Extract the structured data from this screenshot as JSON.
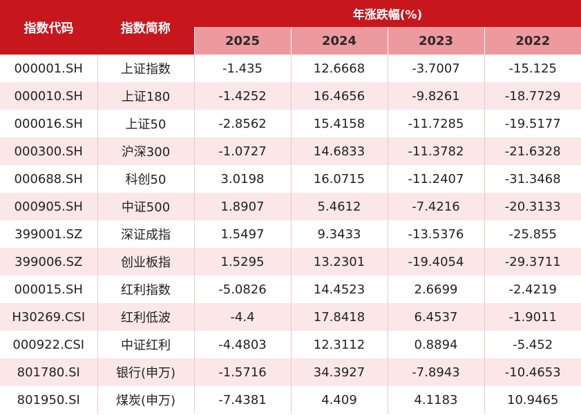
{
  "header": {
    "code_label": "指数代码",
    "name_label": "指数简称",
    "group_label": "年涨跌幅(%)",
    "years": [
      "2025",
      "2024",
      "2023",
      "2022"
    ]
  },
  "rows": [
    {
      "code": "000001.SH",
      "name": "上证指数",
      "v2025": "-1.435",
      "v2024": "12.6668",
      "v2023": "-3.7007",
      "v2022": "-15.125"
    },
    {
      "code": "000010.SH",
      "name": "上证180",
      "v2025": "-1.4252",
      "v2024": "16.4656",
      "v2023": "-9.8261",
      "v2022": "-18.7729"
    },
    {
      "code": "000016.SH",
      "name": "上证50",
      "v2025": "-2.8562",
      "v2024": "15.4158",
      "v2023": "-11.7285",
      "v2022": "-19.5177"
    },
    {
      "code": "000300.SH",
      "name": "沪深300",
      "v2025": "-1.0727",
      "v2024": "14.6833",
      "v2023": "-11.3782",
      "v2022": "-21.6328"
    },
    {
      "code": "000688.SH",
      "name": "科创50",
      "v2025": "3.0198",
      "v2024": "16.0715",
      "v2023": "-11.2407",
      "v2022": "-31.3468"
    },
    {
      "code": "000905.SH",
      "name": "中证500",
      "v2025": "1.8907",
      "v2024": "5.4612",
      "v2023": "-7.4216",
      "v2022": "-20.3133"
    },
    {
      "code": "399001.SZ",
      "name": "深证成指",
      "v2025": "1.5497",
      "v2024": "9.3433",
      "v2023": "-13.5376",
      "v2022": "-25.855"
    },
    {
      "code": "399006.SZ",
      "name": "创业板指",
      "v2025": "1.5295",
      "v2024": "13.2301",
      "v2023": "-19.4054",
      "v2022": "-29.3711"
    },
    {
      "code": "000015.SH",
      "name": "红利指数",
      "v2025": "-5.0826",
      "v2024": "14.4523",
      "v2023": "2.6699",
      "v2022": "-2.4219"
    },
    {
      "code": "H30269.CSI",
      "name": "红利低波",
      "v2025": "-4.4",
      "v2024": "17.8418",
      "v2023": "6.4537",
      "v2022": "-1.9011"
    },
    {
      "code": "000922.CSI",
      "name": "中证红利",
      "v2025": "-4.4803",
      "v2024": "12.3112",
      "v2023": "0.8894",
      "v2022": "-5.452"
    },
    {
      "code": "801780.SI",
      "name": "银行(申万)",
      "v2025": "-1.5716",
      "v2024": "34.3927",
      "v2023": "-7.8943",
      "v2022": "-10.4653"
    },
    {
      "code": "801950.SI",
      "name": "煤炭(申万)",
      "v2025": "-7.4381",
      "v2024": "4.409",
      "v2023": "4.1183",
      "v2022": "10.9465"
    }
  ],
  "colors": {
    "header_red": "#c8161d",
    "year_header_pink": "#ec9a9e",
    "stripe_pink": "#fbe7e8"
  }
}
